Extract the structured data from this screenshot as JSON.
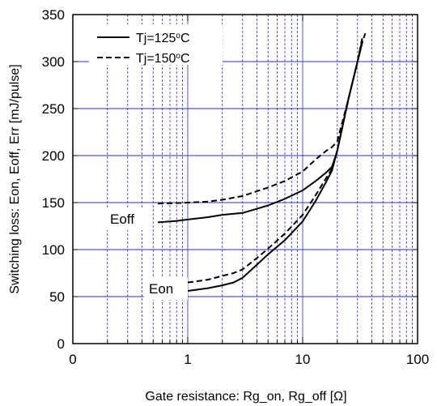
{
  "chart_data": {
    "type": "line",
    "title": "",
    "xlabel": "Gate resistance: Rg_on, Rg_off [Ω]",
    "ylabel": "Switching loss: Eon, Eoff, Err [mJ/pulse]",
    "xscale": "log",
    "xlim": [
      0,
      100
    ],
    "ylim": [
      0,
      350
    ],
    "grid": true,
    "legend_position": "top-left",
    "x_tick_labels": [
      "0",
      "1",
      "10",
      "100"
    ],
    "y_tick_labels": [
      "0",
      "50",
      "100",
      "150",
      "200",
      "250",
      "300",
      "350"
    ],
    "y_ticks": [
      0,
      50,
      100,
      150,
      200,
      250,
      300,
      350
    ],
    "legend": [
      {
        "label": "Tj=125",
        "sup": "o",
        "unit": "C",
        "style": "solid"
      },
      {
        "label": "Tj=150",
        "sup": "o",
        "unit": "C",
        "style": "dashed"
      }
    ],
    "annotations": [
      {
        "text": "Eoff",
        "x": 0.32,
        "y": 134
      },
      {
        "text": "Eon",
        "x": 0.62,
        "y": 59
      }
    ],
    "series": [
      {
        "curve": "Eoff",
        "style": "solid",
        "x": [
          0.55,
          0.8,
          1,
          1.5,
          2,
          3,
          5,
          7,
          10,
          13,
          16,
          18,
          20,
          25,
          30,
          33
        ],
        "y": [
          129,
          130.5,
          132,
          134.5,
          137,
          139,
          147,
          154,
          163,
          173,
          182,
          188,
          205,
          260,
          300,
          320
        ]
      },
      {
        "curve": "Eoff",
        "style": "dashed",
        "x": [
          0.55,
          0.8,
          1,
          1.5,
          2,
          3,
          5,
          7,
          10,
          13,
          16,
          18,
          20,
          25,
          30,
          33,
          35
        ],
        "y": [
          149,
          149.5,
          150,
          151,
          153,
          157,
          166,
          173,
          183,
          196,
          205,
          209,
          215,
          260,
          300,
          320,
          330
        ]
      },
      {
        "curve": "Eon",
        "style": "solid",
        "x": [
          1,
          1.5,
          2,
          2.5,
          3,
          4,
          5,
          7,
          10,
          13,
          16,
          18,
          20,
          25,
          30,
          33
        ],
        "y": [
          56,
          59,
          62,
          65,
          70,
          84,
          95,
          110,
          130,
          152,
          172,
          184,
          205,
          260,
          300,
          323
        ]
      },
      {
        "curve": "Eon",
        "style": "dashed",
        "x": [
          1,
          1.5,
          2,
          2.5,
          3,
          4,
          5,
          7,
          10,
          13,
          16,
          18,
          20,
          25,
          30,
          33
        ],
        "y": [
          65,
          68,
          72,
          75,
          79,
          91,
          101,
          117,
          137,
          158,
          176,
          186,
          205,
          260,
          300,
          325
        ]
      }
    ]
  }
}
